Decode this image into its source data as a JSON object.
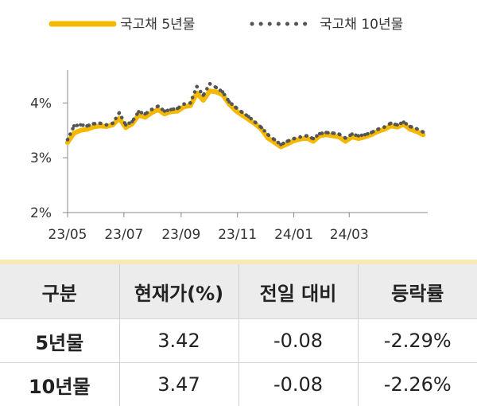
{
  "chart_data": {
    "type": "line",
    "x_ticks": [
      "23/05",
      "23/07",
      "23/09",
      "23/11",
      "24/01",
      "24/03"
    ],
    "y_ticks": [
      "2%",
      "3%",
      "4%"
    ],
    "ylim": [
      2,
      4.6
    ],
    "xlim": [
      "2023-05-01",
      "2024-05-25"
    ],
    "x": [
      "2023-05-01",
      "2023-05-08",
      "2023-05-15",
      "2023-05-22",
      "2023-05-29",
      "2023-06-05",
      "2023-06-12",
      "2023-06-19",
      "2023-06-26",
      "2023-07-03",
      "2023-07-10",
      "2023-07-17",
      "2023-07-24",
      "2023-07-31",
      "2023-08-07",
      "2023-08-14",
      "2023-08-21",
      "2023-08-28",
      "2023-09-04",
      "2023-09-11",
      "2023-09-18",
      "2023-09-25",
      "2023-10-02",
      "2023-10-09",
      "2023-10-16",
      "2023-10-23",
      "2023-10-30",
      "2023-11-06",
      "2023-11-13",
      "2023-11-20",
      "2023-11-27",
      "2023-12-04",
      "2023-12-11",
      "2023-12-18",
      "2023-12-25",
      "2024-01-01",
      "2024-01-08",
      "2024-01-15",
      "2024-01-22",
      "2024-01-29",
      "2024-02-05",
      "2024-02-12",
      "2024-02-19",
      "2024-02-26",
      "2024-03-04",
      "2024-03-11",
      "2024-03-18",
      "2024-03-25",
      "2024-04-01",
      "2024-04-08",
      "2024-04-15",
      "2024-04-22",
      "2024-04-29",
      "2024-05-06",
      "2024-05-13",
      "2024-05-20"
    ],
    "series": [
      {
        "name": "국고채 5년물",
        "color": "#f5b800",
        "style": "solid",
        "values": [
          3.28,
          3.45,
          3.5,
          3.52,
          3.56,
          3.58,
          3.57,
          3.6,
          3.72,
          3.55,
          3.62,
          3.78,
          3.74,
          3.82,
          3.88,
          3.8,
          3.84,
          3.85,
          3.93,
          3.95,
          4.18,
          4.05,
          4.22,
          4.2,
          4.15,
          3.98,
          3.86,
          3.78,
          3.7,
          3.62,
          3.52,
          3.36,
          3.28,
          3.2,
          3.25,
          3.31,
          3.34,
          3.36,
          3.3,
          3.4,
          3.42,
          3.4,
          3.38,
          3.3,
          3.38,
          3.35,
          3.38,
          3.42,
          3.48,
          3.52,
          3.58,
          3.56,
          3.61,
          3.52,
          3.48,
          3.42
        ]
      },
      {
        "name": "국고채 10년물",
        "color": "#555555",
        "style": "dotted",
        "values": [
          3.33,
          3.58,
          3.6,
          3.58,
          3.62,
          3.63,
          3.6,
          3.63,
          3.82,
          3.6,
          3.66,
          3.84,
          3.8,
          3.88,
          3.94,
          3.85,
          3.88,
          3.9,
          3.98,
          4.0,
          4.3,
          4.14,
          4.35,
          4.28,
          4.2,
          4.02,
          3.92,
          3.83,
          3.75,
          3.65,
          3.55,
          3.42,
          3.33,
          3.24,
          3.3,
          3.35,
          3.38,
          3.4,
          3.35,
          3.44,
          3.46,
          3.45,
          3.43,
          3.36,
          3.43,
          3.4,
          3.42,
          3.46,
          3.52,
          3.56,
          3.63,
          3.6,
          3.65,
          3.57,
          3.53,
          3.47
        ]
      }
    ]
  },
  "table": {
    "headers": [
      "구분",
      "현재가(%)",
      "전일 대비",
      "등락률"
    ],
    "rows": [
      [
        "5년물",
        "3.42",
        "-0.08",
        "-2.29%"
      ],
      [
        "10년물",
        "3.47",
        "-0.08",
        "-2.26%"
      ]
    ]
  }
}
